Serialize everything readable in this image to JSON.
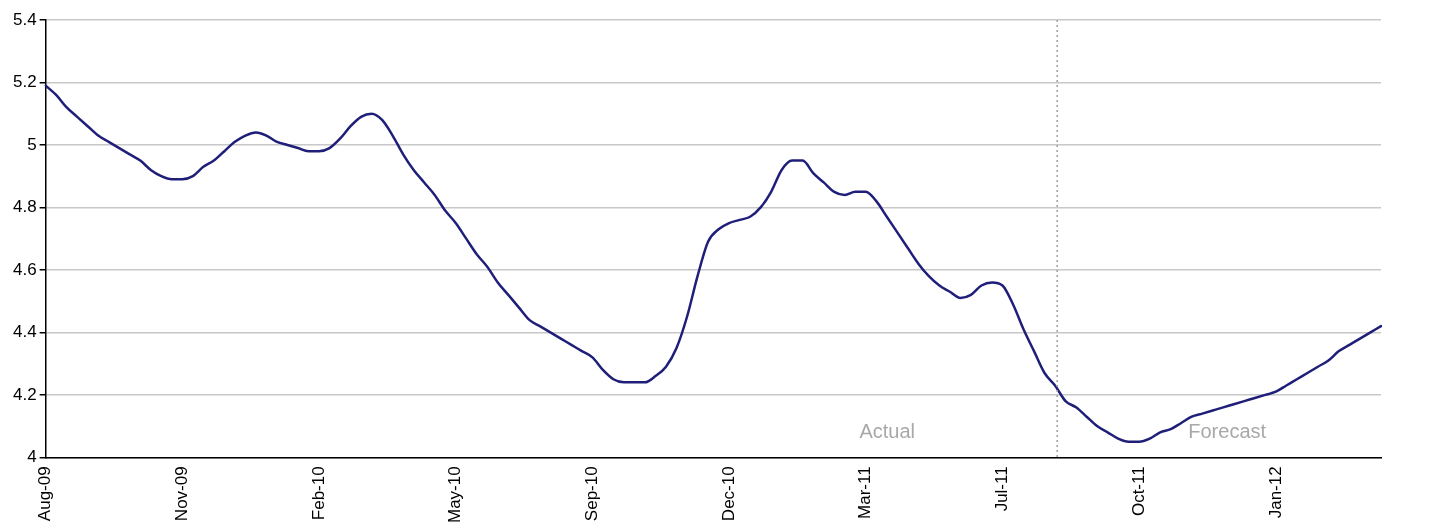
{
  "chart_data": {
    "type": "line",
    "color": "#1f1f7a",
    "categories": [
      "Aug-09",
      null,
      null,
      null,
      null,
      null,
      null,
      null,
      null,
      null,
      null,
      null,
      null,
      "Nov-09",
      null,
      null,
      null,
      null,
      null,
      null,
      null,
      null,
      null,
      null,
      null,
      null,
      "Feb-10",
      null,
      null,
      null,
      null,
      null,
      null,
      null,
      null,
      null,
      null,
      null,
      null,
      "May-10",
      null,
      null,
      null,
      null,
      null,
      null,
      null,
      null,
      null,
      null,
      null,
      null,
      "Sep-10",
      null,
      null,
      null,
      null,
      null,
      null,
      null,
      null,
      null,
      null,
      null,
      null,
      "Dec-10",
      null,
      null,
      null,
      null,
      null,
      null,
      null,
      null,
      null,
      null,
      null,
      null,
      "Mar-11",
      null,
      null,
      null,
      null,
      null,
      null,
      null,
      null,
      null,
      null,
      null,
      null,
      "Jul-11",
      null,
      null,
      null,
      null,
      null,
      null,
      null,
      null,
      null,
      null,
      null,
      null,
      "Oct-11",
      null,
      null,
      null,
      null,
      null,
      null,
      null,
      null,
      null,
      null,
      null,
      null,
      "Jan-12",
      null,
      null,
      null,
      null,
      null,
      null,
      null,
      null,
      null,
      null
    ],
    "values": [
      5.19,
      5.16,
      5.12,
      5.09,
      5.06,
      5.03,
      5.01,
      4.99,
      4.97,
      4.95,
      4.92,
      4.9,
      4.89,
      4.89,
      4.9,
      4.93,
      4.95,
      4.98,
      5.01,
      5.03,
      5.04,
      5.03,
      5.01,
      5.0,
      4.99,
      4.98,
      4.98,
      4.99,
      5.02,
      5.06,
      5.09,
      5.1,
      5.08,
      5.03,
      4.97,
      4.92,
      4.88,
      4.84,
      4.79,
      4.75,
      4.7,
      4.65,
      4.61,
      4.56,
      4.52,
      4.48,
      4.44,
      4.42,
      4.4,
      4.38,
      4.36,
      4.34,
      4.32,
      4.28,
      4.25,
      4.24,
      4.24,
      4.24,
      4.26,
      4.29,
      4.35,
      4.45,
      4.58,
      4.69,
      4.73,
      4.75,
      4.76,
      4.77,
      4.8,
      4.85,
      4.92,
      4.95,
      4.95,
      4.91,
      4.88,
      4.85,
      4.84,
      4.85,
      4.85,
      4.82,
      4.77,
      4.72,
      4.67,
      4.62,
      4.58,
      4.55,
      4.53,
      4.51,
      4.52,
      4.55,
      4.56,
      4.55,
      4.49,
      4.41,
      4.34,
      4.27,
      4.23,
      4.18,
      4.16,
      4.13,
      4.1,
      4.08,
      4.06,
      4.05,
      4.05,
      4.06,
      4.08,
      4.09,
      4.11,
      4.13,
      4.14,
      4.15,
      4.16,
      4.17,
      4.18,
      4.19,
      4.2,
      4.21,
      4.23,
      4.25,
      4.27,
      4.29,
      4.31,
      4.34,
      4.36,
      4.38,
      4.4,
      4.42
    ],
    "ylim": [
      4,
      5.4
    ],
    "yticks": [
      4,
      4.2,
      4.4,
      4.6,
      4.8,
      5,
      5.2,
      5.4
    ],
    "grid": "y",
    "annotations": [
      "Actual",
      "Forecast"
    ]
  }
}
